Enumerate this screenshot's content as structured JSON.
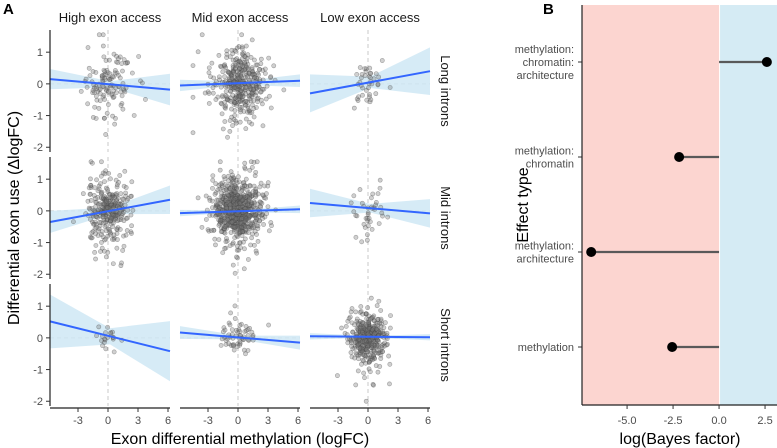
{
  "chart_data": [
    {
      "panel": "A",
      "type": "scatter",
      "xlabel": "Exon differential methylation (logFC)",
      "ylabel": "Differential exon use (ΔlogFC)",
      "xlim": [
        -5.8,
        6.2
      ],
      "ylim": [
        -2.15,
        1.7
      ],
      "xticks": [
        "-3",
        "0",
        "3",
        "6"
      ],
      "xtick_values": [
        -3,
        0,
        3,
        6
      ],
      "yticks": [
        "1",
        "0",
        "-1",
        "-2"
      ],
      "ytick_values": [
        1,
        0,
        -1,
        -2
      ],
      "columns": [
        "High exon access",
        "Mid exon access",
        "Low exon access"
      ],
      "rows": [
        "Long introns",
        "Mid introns",
        "Short introns"
      ],
      "panels": [
        {
          "row": 0,
          "col": 0,
          "n": 120,
          "sdx": 1.3,
          "sdy": 0.45,
          "fit": [
            0.15,
            -0.18
          ],
          "ci": [
            0.32,
            0.5
          ]
        },
        {
          "row": 0,
          "col": 1,
          "n": 380,
          "sdx": 1.4,
          "sdy": 0.5,
          "fit": [
            -0.05,
            0.1
          ],
          "ci": [
            0.18,
            0.2
          ]
        },
        {
          "row": 0,
          "col": 2,
          "n": 40,
          "sdx": 0.8,
          "sdy": 0.4,
          "fit": [
            -0.3,
            0.4
          ],
          "ci": [
            0.6,
            0.75
          ]
        },
        {
          "row": 1,
          "col": 0,
          "n": 300,
          "sdx": 1.1,
          "sdy": 0.45,
          "fit": [
            -0.35,
            0.35
          ],
          "ci": [
            0.35,
            0.45
          ]
        },
        {
          "row": 1,
          "col": 1,
          "n": 700,
          "sdx": 1.2,
          "sdy": 0.45,
          "fit": [
            -0.07,
            0.05
          ],
          "ci": [
            0.1,
            0.12
          ]
        },
        {
          "row": 1,
          "col": 2,
          "n": 40,
          "sdx": 0.8,
          "sdy": 0.35,
          "fit": [
            0.25,
            -0.08
          ],
          "ci": [
            0.45,
            0.45
          ]
        },
        {
          "row": 2,
          "col": 0,
          "n": 20,
          "sdx": 0.6,
          "sdy": 0.2,
          "fit": [
            0.52,
            -0.42
          ],
          "ci": [
            0.85,
            0.95
          ]
        },
        {
          "row": 2,
          "col": 1,
          "n": 60,
          "sdx": 0.8,
          "sdy": 0.25,
          "fit": [
            0.17,
            -0.15
          ],
          "ci": [
            0.2,
            0.22
          ]
        },
        {
          "row": 2,
          "col": 2,
          "n": 400,
          "sdx": 0.9,
          "sdy": 0.35,
          "fit": [
            0.05,
            0.02
          ],
          "ci": [
            0.1,
            0.1
          ]
        }
      ]
    },
    {
      "panel": "B",
      "type": "lollipop",
      "xlabel": "log(Bayes factor)",
      "ylabel": "Effect type",
      "xlim": [
        -7.45,
        3.15
      ],
      "xticks": [
        "-5.0",
        "-2.5",
        "0.0",
        "2.5"
      ],
      "xtick_values": [
        -5,
        -2.5,
        0,
        2.5
      ],
      "categories": [
        [
          "methylation:",
          "chromatin:",
          "architecture"
        ],
        [
          "methylation:",
          "chromatin"
        ],
        [
          "methylation:",
          "architecture"
        ],
        [
          "methylation"
        ]
      ],
      "values": [
        2.6,
        -2.17,
        -6.95,
        -2.55
      ],
      "colors": {
        "negative_bg": "#fcd5d0",
        "positive_bg": "#d5ebf4",
        "point": "#000000",
        "segment": "#595959"
      }
    }
  ],
  "labels": {
    "panel_a": "A",
    "panel_b": "B"
  },
  "colors": {
    "fit": "#3366ff",
    "ci": "#cfe8f5",
    "point": "#555555"
  }
}
